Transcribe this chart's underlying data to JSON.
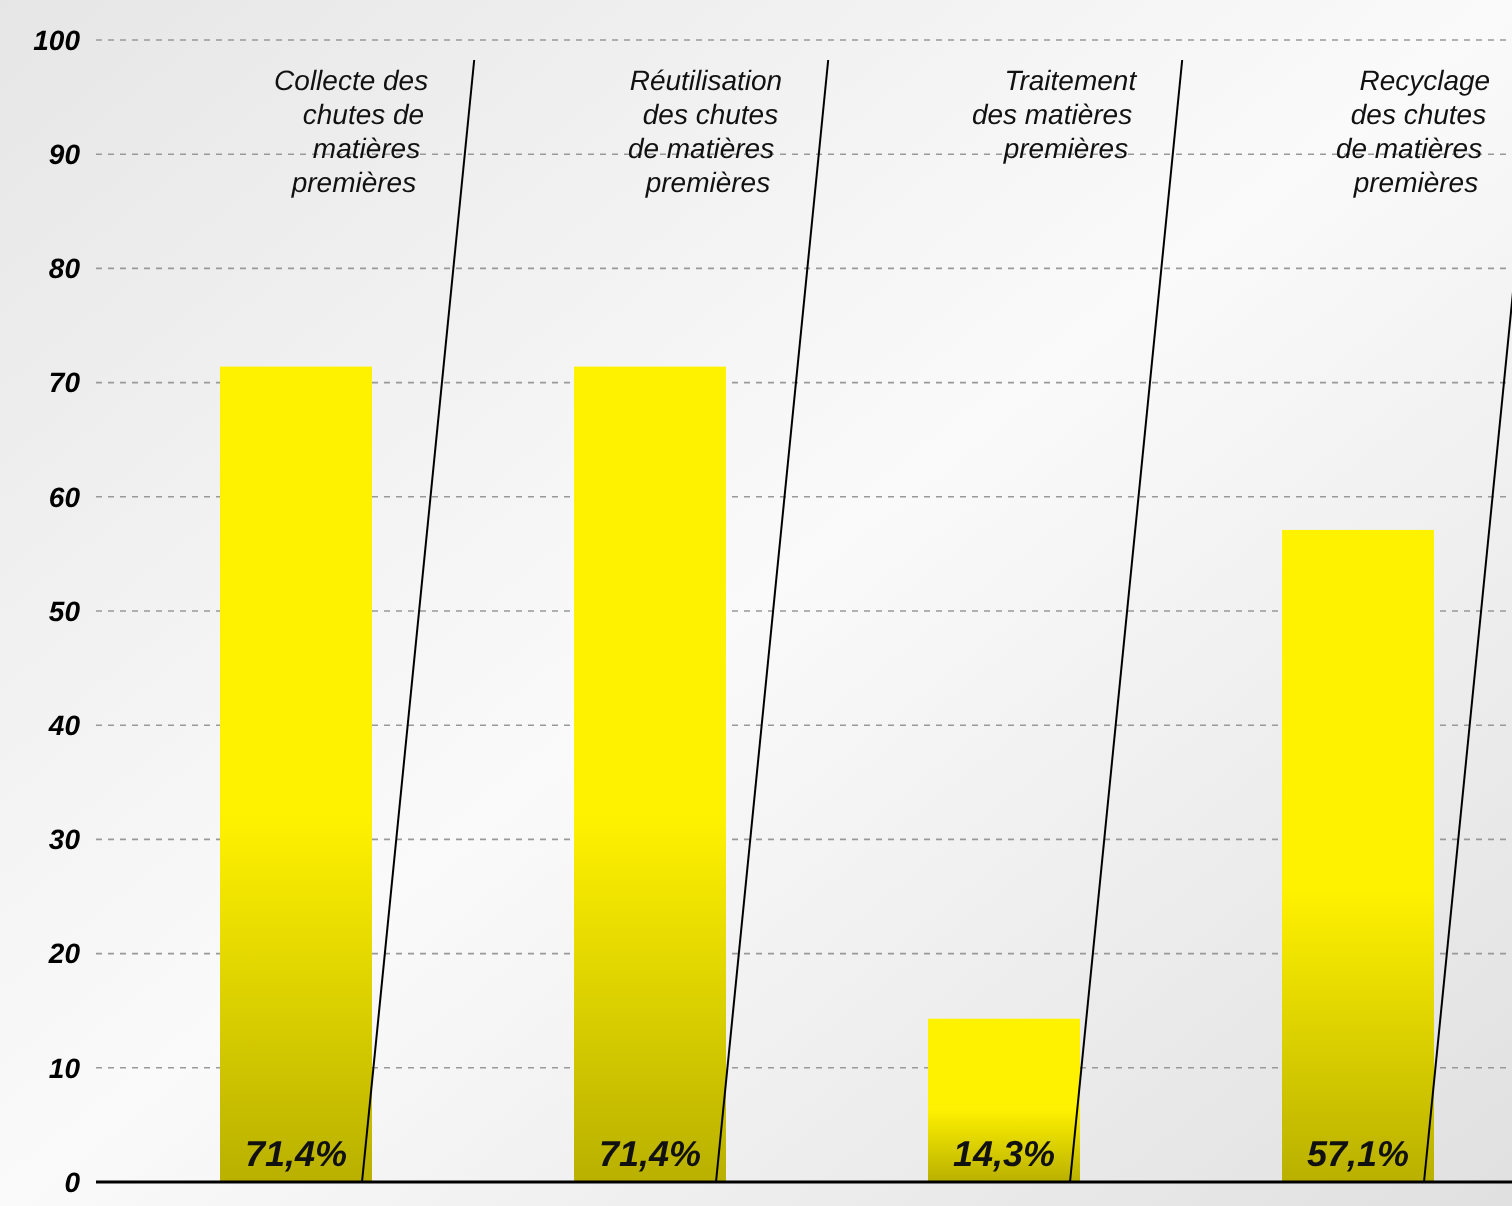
{
  "chart_data": {
    "type": "bar",
    "categories": [
      "Collecte des\nchutes de\nmatières\npremières",
      "Réutilisation\ndes chutes\nde matières\npremières",
      "Traitement\ndes matières\npremières",
      "Recyclage\ndes chutes\nde matières\npremières"
    ],
    "values": [
      71.4,
      71.4,
      14.3,
      57.1
    ],
    "value_labels": [
      "71,4%",
      "71,4%",
      "14,3%",
      "57,1%"
    ],
    "color": "#fff200",
    "ylim": [
      0,
      100
    ],
    "yticks": [
      0,
      10,
      20,
      30,
      40,
      50,
      60,
      70,
      80,
      90,
      100
    ],
    "grid": "y"
  }
}
